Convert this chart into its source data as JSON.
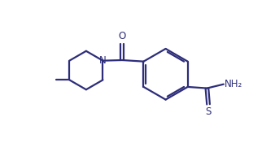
{
  "background_color": "#ffffff",
  "line_color": "#2d2d7a",
  "text_color": "#2d2d7a",
  "line_width": 1.6,
  "font_size": 8.5,
  "figsize": [
    3.38,
    1.76
  ],
  "dpi": 100,
  "xlim": [
    0.0,
    9.5
  ],
  "ylim": [
    0.5,
    5.8
  ]
}
